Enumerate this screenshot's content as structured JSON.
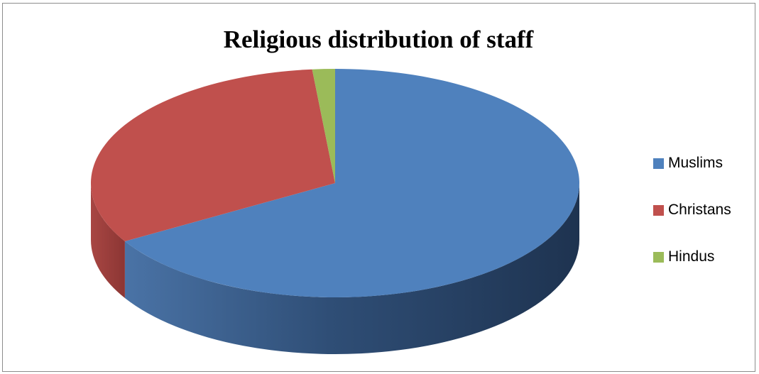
{
  "colors": {
    "muslims": "#4F81BD",
    "christans": "#C0504D",
    "hindus": "#9BBB59",
    "frame": "#8C8C8C"
  },
  "chart_data": {
    "type": "pie",
    "subtype": "3d-pie",
    "title": "Religious distribution of staff",
    "legend_position": "right",
    "categories": [
      "Muslims",
      "Christans",
      "Hindus"
    ],
    "values": [
      66.5,
      32,
      1.5
    ],
    "colors": [
      "#4F81BD",
      "#C0504D",
      "#9BBB59"
    ]
  }
}
